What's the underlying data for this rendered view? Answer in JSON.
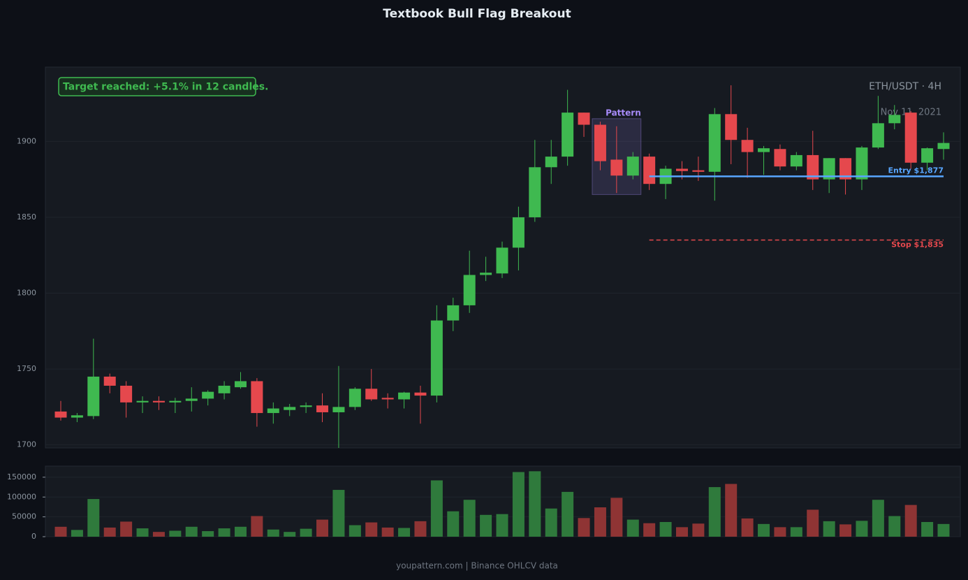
{
  "chart_data": {
    "type": "candlestick",
    "title": "Textbook Bull Flag Breakout",
    "annotation": "Target reached: +5.1% in 12 candles.",
    "symbol": "ETH/USDT · 4H",
    "date": "Nov 11, 2021",
    "footer": "youpattern.com | Binance OHLCV data",
    "up_color": "#3fb950",
    "down_color": "#e5484d",
    "volume_up_color": "#2f7a3c",
    "volume_down_color": "#8f3434",
    "open": [
      1722,
      1718,
      1719,
      1745,
      1739,
      1728,
      1729,
      1728,
      1729,
      1730.5,
      1734,
      1738,
      1742,
      1721,
      1723,
      1725,
      1726,
      1721.5,
      1725,
      1737,
      1731,
      1730,
      1734.5,
      1732.5,
      1782,
      1792,
      1812,
      1813,
      1830,
      1850,
      1883,
      1890,
      1919,
      1911,
      1888,
      1877.5,
      1890,
      1872,
      1882,
      1881,
      1880,
      1918,
      1901,
      1893,
      1895,
      1883.5,
      1891,
      1875,
      1889,
      1875,
      1896,
      1912,
      1919,
      1886,
      1895
    ],
    "high": [
      1729,
      1721,
      1770,
      1747,
      1742,
      1732,
      1732,
      1731,
      1738,
      1736,
      1742,
      1748,
      1744,
      1728,
      1727,
      1728,
      1734,
      1752,
      1738,
      1750,
      1734,
      1735,
      1739,
      1792,
      1797,
      1828,
      1824,
      1834,
      1857,
      1901,
      1901,
      1934,
      1919,
      1913,
      1910,
      1893,
      1892,
      1884,
      1887,
      1890,
      1922,
      1937,
      1909,
      1897,
      1898,
      1893,
      1907,
      1889,
      1889,
      1897,
      1930,
      1924,
      1920,
      1896,
      1906
    ],
    "low": [
      1716,
      1715,
      1717,
      1734,
      1718,
      1721,
      1723,
      1721,
      1722,
      1726,
      1730,
      1737,
      1712,
      1714,
      1719,
      1721,
      1715,
      1698,
      1723,
      1729,
      1724,
      1724,
      1714,
      1728,
      1775,
      1787,
      1808,
      1810,
      1815,
      1847,
      1872,
      1884,
      1903,
      1881,
      1866,
      1875,
      1868,
      1862,
      1875,
      1874,
      1861,
      1885,
      1876,
      1878,
      1881,
      1881,
      1868,
      1866,
      1865,
      1868,
      1895,
      1908,
      1882,
      1881,
      1888
    ],
    "close": [
      1718,
      1719.5,
      1745,
      1739,
      1728,
      1729,
      1728,
      1729,
      1730.5,
      1735,
      1739,
      1742,
      1721,
      1724,
      1725,
      1726,
      1721.5,
      1725,
      1737,
      1730,
      1730,
      1734.5,
      1732.5,
      1782,
      1792,
      1812,
      1813.5,
      1830,
      1850,
      1883,
      1890,
      1919,
      1911,
      1887,
      1877.5,
      1890,
      1872,
      1882,
      1880.5,
      1880,
      1918,
      1901,
      1893,
      1895.5,
      1883.5,
      1891,
      1875,
      1889,
      1875,
      1896,
      1912,
      1917.5,
      1886,
      1895.5,
      1899
    ],
    "volume": [
      25000,
      17000,
      95000,
      23000,
      38000,
      21000,
      12000,
      15000,
      25000,
      14000,
      21000,
      25000,
      52000,
      18000,
      12000,
      20000,
      43000,
      118000,
      29000,
      36000,
      23000,
      22000,
      39000,
      142000,
      64000,
      93000,
      55000,
      57000,
      163000,
      165000,
      71000,
      113000,
      47000,
      74000,
      98000,
      43000,
      34000,
      37000,
      24000,
      33000,
      125000,
      133000,
      46000,
      32000,
      24000,
      24000,
      68000,
      39000,
      31000,
      40000,
      93000,
      52000,
      80000,
      37000,
      32000
    ],
    "ylim": [
      1698,
      1949
    ],
    "yticks": [
      1700,
      1750,
      1800,
      1850,
      1900
    ],
    "volume_ylim": [
      0,
      178000
    ],
    "volume_yticks": [
      0,
      50000,
      100000,
      150000
    ],
    "grid": true,
    "pattern": {
      "label": "Pattern",
      "start": 33,
      "end": 35,
      "top": 1915,
      "bottom": 1865,
      "color": "#a78bfa"
    },
    "levels": [
      {
        "label": "Entry $1,877",
        "value": 1877,
        "start": 36,
        "color": "#58a6ff",
        "dashed": false
      },
      {
        "label": "Stop $1,835",
        "value": 1835,
        "start": 36,
        "color": "#e5484d",
        "dashed": true
      }
    ]
  }
}
